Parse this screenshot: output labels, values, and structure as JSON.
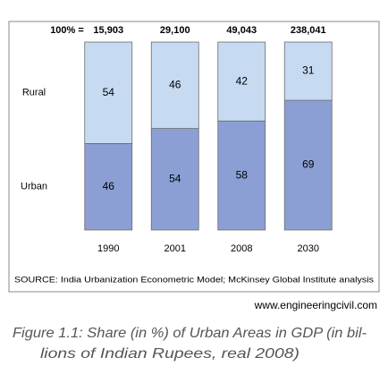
{
  "chart_data": {
    "type": "stacked_bar_100",
    "totals": {
      "label": "100% =",
      "values": [
        15903,
        29100,
        49043,
        238041
      ],
      "value_labels": [
        "15,903",
        "29,100",
        "49,043",
        "238,041"
      ]
    },
    "categories": [
      "1990",
      "2001",
      "2008",
      "2030"
    ],
    "series": [
      {
        "name": "Urban",
        "color": "#8c9fd5",
        "values": [
          46,
          54,
          58,
          69
        ]
      },
      {
        "name": "Rural",
        "color": "#c6daf2",
        "values": [
          54,
          46,
          42,
          31
        ]
      }
    ],
    "ylim": [
      0,
      100
    ],
    "source": "SOURCE: India Urbanization Econometric Model; McKinsey Global Institute analysis"
  },
  "watermark": "www.engineeringcivil.com",
  "caption": [
    "Figure 1.1: Share (in %) of Urban Areas in GDP (in bil-",
    "lions of Indian Rupees, real 2008)"
  ]
}
